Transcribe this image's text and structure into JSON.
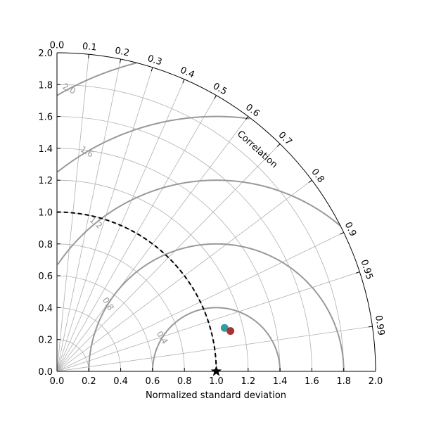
{
  "chart_data": {
    "type": "scatter",
    "subtype": "taylor-diagram",
    "title": "",
    "xlabel": "Normalized standard deviation",
    "arc_label": "Correlation",
    "std_range": [
      0,
      2.0
    ],
    "std_ticks": [
      "0.0",
      "0.2",
      "0.4",
      "0.6",
      "0.8",
      "1.0",
      "1.2",
      "1.4",
      "1.6",
      "1.8",
      "2.0"
    ],
    "correlation_ticks": [
      {
        "r": 0.0,
        "label": "0.0"
      },
      {
        "r": 0.1,
        "label": "0.1"
      },
      {
        "r": 0.2,
        "label": "0.2"
      },
      {
        "r": 0.3,
        "label": "0.3"
      },
      {
        "r": 0.4,
        "label": "0.4"
      },
      {
        "r": 0.5,
        "label": "0.5"
      },
      {
        "r": 0.6,
        "label": "0.6"
      },
      {
        "r": 0.7,
        "label": "0.7"
      },
      {
        "r": 0.8,
        "label": "0.8"
      },
      {
        "r": 0.9,
        "label": "0.9"
      },
      {
        "r": 0.95,
        "label": "0.95"
      },
      {
        "r": 0.99,
        "label": "0.99"
      }
    ],
    "std_grid_circles": [
      0.2,
      0.4,
      0.6,
      0.8,
      1.0,
      1.2,
      1.4,
      1.6,
      1.8,
      2.0
    ],
    "rms_contours": [
      {
        "value": 0.4,
        "label": "0.4"
      },
      {
        "value": 0.8,
        "label": "0.8"
      },
      {
        "value": 1.2,
        "label": "1.2"
      },
      {
        "value": 1.6,
        "label": "1.6"
      },
      {
        "value": 2.0,
        "label": "2.0"
      }
    ],
    "reference": {
      "std": 1.0,
      "correlation": 1.0,
      "marker": "star",
      "color": "#000000"
    },
    "reference_arc_std": 1.0,
    "points": [
      {
        "std": 1.087,
        "correlation": 0.968,
        "color": "#2e9e9e"
      },
      {
        "std": 1.118,
        "correlation": 0.974,
        "color": "#a83236"
      }
    ],
    "grid": true
  }
}
